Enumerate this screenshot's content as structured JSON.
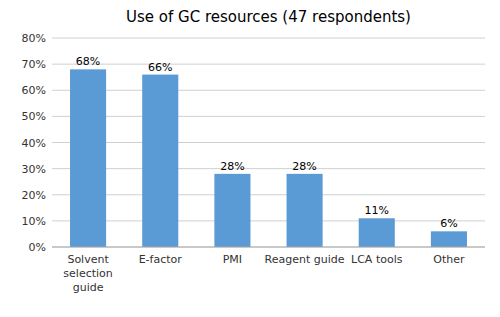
{
  "chart_data": {
    "type": "bar",
    "title": "Use of GC resources (47 respondents)",
    "categories": [
      "Solvent\nselection\nguide",
      "E-factor",
      "PMI",
      "Reagent guide",
      "LCA tools",
      "Other"
    ],
    "values": [
      68,
      66,
      28,
      28,
      11,
      6
    ],
    "value_labels": [
      "68%",
      "66%",
      "28%",
      "28%",
      "11%",
      "6%"
    ],
    "data_labels": true,
    "color": "#5B9BD5",
    "ylim": [
      0,
      80
    ],
    "yticks": [
      {
        "value": 0,
        "label": "0%"
      },
      {
        "value": 10,
        "label": "10%"
      },
      {
        "value": 20,
        "label": "20%"
      },
      {
        "value": 30,
        "label": "30%"
      },
      {
        "value": 40,
        "label": "40%"
      },
      {
        "value": 50,
        "label": "50%"
      },
      {
        "value": 60,
        "label": "60%"
      },
      {
        "value": 70,
        "label": "70%"
      },
      {
        "value": 80,
        "label": "80%"
      }
    ],
    "grid": true
  }
}
